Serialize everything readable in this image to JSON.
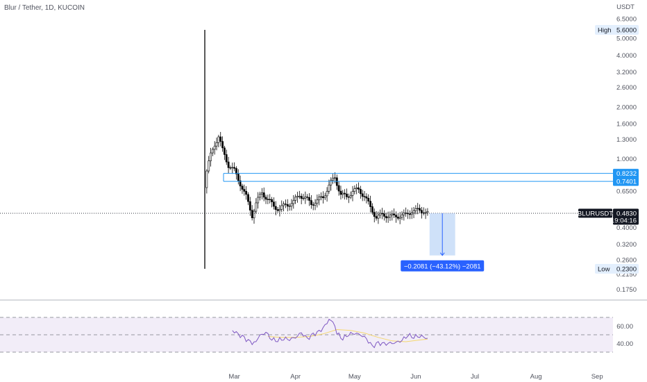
{
  "header": {
    "symbol_title": "Blur / Tether, 1D, KUCOIN",
    "price_axis_currency": "USDT"
  },
  "colors": {
    "candle": "#000000",
    "level_line": "#2196f3",
    "level_tag": "#2196f3",
    "measure_fill": "#bbd4f6",
    "measure_line": "#2962ff",
    "measure_label_bg": "#2962ff",
    "rsi_line": "#7e57c2",
    "rsi_ma": "#f5d76e",
    "rsi_band": "#ede7f6",
    "last_tag_bg": "#131722",
    "stat_bg": "#e3effd"
  },
  "labels": {
    "high_label": "High",
    "high_value": "5.6000",
    "low_label": "Low",
    "low_value": "0.2300",
    "level_upper": "0.8232",
    "level_lower": "0.7401",
    "last_symbol": "BLURUSDT",
    "last_price": "0.4830",
    "countdown": "19:04:16",
    "measure_text": "−0.2081 (−43.12%) −2081"
  },
  "chart_data": [
    {
      "type": "candlestick",
      "title": "Blur / Tether, 1D, KUCOIN",
      "y_scale": "log",
      "y_ticks": [
        "6.5000",
        "5.6000",
        "5.0000",
        "4.0000",
        "3.2000",
        "2.6000",
        "2.0000",
        "1.6000",
        "1.3000",
        "1.0000",
        "0.8232",
        "0.7401",
        "0.6500",
        "0.4830",
        "0.4000",
        "0.3200",
        "0.2600",
        "0.2300",
        "0.2150",
        "0.1750"
      ],
      "x_ticks": [
        "Mar",
        "Apr",
        "May",
        "Jun",
        "Jul",
        "Aug",
        "Sep"
      ],
      "ylim": [
        0.16,
        6.8
      ],
      "first_candle": {
        "date": "2023-02-14",
        "open": 0.68,
        "high": 5.6,
        "low": 0.23,
        "close": 0.68
      },
      "close_anchors": [
        [
          "2023-02-15",
          0.85
        ],
        [
          "2023-02-17",
          1.05
        ],
        [
          "2023-02-19",
          1.22
        ],
        [
          "2023-02-21",
          1.35
        ],
        [
          "2023-02-23",
          1.12
        ],
        [
          "2023-02-26",
          0.92
        ],
        [
          "2023-03-01",
          0.85
        ],
        [
          "2023-03-04",
          0.72
        ],
        [
          "2023-03-07",
          0.6
        ],
        [
          "2023-03-10",
          0.47
        ],
        [
          "2023-03-12",
          0.55
        ],
        [
          "2023-03-15",
          0.64
        ],
        [
          "2023-03-18",
          0.58
        ],
        [
          "2023-03-21",
          0.53
        ],
        [
          "2023-03-24",
          0.51
        ],
        [
          "2023-03-27",
          0.54
        ],
        [
          "2023-03-31",
          0.56
        ],
        [
          "2023-04-03",
          0.62
        ],
        [
          "2023-04-06",
          0.59
        ],
        [
          "2023-04-09",
          0.55
        ],
        [
          "2023-04-12",
          0.57
        ],
        [
          "2023-04-15",
          0.6
        ],
        [
          "2023-04-18",
          0.7
        ],
        [
          "2023-04-21",
          0.78
        ],
        [
          "2023-04-24",
          0.62
        ],
        [
          "2023-04-27",
          0.6
        ],
        [
          "2023-04-30",
          0.65
        ],
        [
          "2023-05-03",
          0.66
        ],
        [
          "2023-05-06",
          0.61
        ],
        [
          "2023-05-09",
          0.52
        ],
        [
          "2023-05-12",
          0.46
        ],
        [
          "2023-05-15",
          0.47
        ],
        [
          "2023-05-18",
          0.47
        ],
        [
          "2023-05-21",
          0.46
        ],
        [
          "2023-05-24",
          0.47
        ],
        [
          "2023-05-27",
          0.47
        ],
        [
          "2023-05-30",
          0.5
        ],
        [
          "2023-06-02",
          0.5
        ],
        [
          "2023-06-05",
          0.5
        ],
        [
          "2023-06-07",
          0.483
        ]
      ],
      "levels": [
        0.8232,
        0.7401
      ],
      "last_price": 0.483,
      "measure": {
        "from_date": "2023-06-08",
        "to_date": "2023-06-21",
        "from_price": 0.483,
        "to_price": 0.2749,
        "change": -0.2081,
        "percent": -43.12,
        "bars": -2081
      }
    },
    {
      "type": "line",
      "title": "RSI",
      "y_ticks": [
        "60.00",
        "40.00"
      ],
      "ylim": [
        10,
        90
      ],
      "bands": [
        30,
        50,
        70
      ],
      "series": [
        {
          "values": [
            [
              "2023-02-28",
              55
            ],
            [
              "2023-03-03",
              50
            ],
            [
              "2023-03-06",
              46
            ],
            [
              "2023-03-09",
              41
            ],
            [
              "2023-03-11",
              40
            ],
            [
              "2023-03-14",
              49
            ],
            [
              "2023-03-17",
              53
            ],
            [
              "2023-03-20",
              45
            ],
            [
              "2023-03-23",
              44
            ],
            [
              "2023-03-26",
              46
            ],
            [
              "2023-03-29",
              45
            ],
            [
              "2023-04-01",
              47
            ],
            [
              "2023-04-04",
              52
            ],
            [
              "2023-04-07",
              45
            ],
            [
              "2023-04-10",
              50
            ],
            [
              "2023-04-13",
              53
            ],
            [
              "2023-04-16",
              60
            ],
            [
              "2023-04-18",
              67
            ],
            [
              "2023-04-20",
              65
            ],
            [
              "2023-04-22",
              52
            ],
            [
              "2023-04-25",
              46
            ],
            [
              "2023-04-28",
              51
            ],
            [
              "2023-05-01",
              52
            ],
            [
              "2023-05-04",
              50
            ],
            [
              "2023-05-07",
              45
            ],
            [
              "2023-05-10",
              36
            ],
            [
              "2023-05-13",
              40
            ],
            [
              "2023-05-16",
              39
            ],
            [
              "2023-05-19",
              40
            ],
            [
              "2023-05-22",
              41
            ],
            [
              "2023-05-25",
              44
            ],
            [
              "2023-05-28",
              50
            ],
            [
              "2023-05-31",
              48
            ],
            [
              "2023-06-03",
              49
            ],
            [
              "2023-06-06",
              47
            ],
            [
              "2023-06-07",
              46
            ]
          ]
        },
        {
          "values": [
            [
              "2023-03-18",
              48
            ],
            [
              "2023-03-25",
              47
            ],
            [
              "2023-04-01",
              47
            ],
            [
              "2023-04-08",
              48
            ],
            [
              "2023-04-15",
              51
            ],
            [
              "2023-04-22",
              56
            ],
            [
              "2023-04-29",
              55
            ],
            [
              "2023-05-06",
              52
            ],
            [
              "2023-05-13",
              47
            ],
            [
              "2023-05-20",
              43
            ],
            [
              "2023-05-27",
              42
            ],
            [
              "2023-06-03",
              44
            ],
            [
              "2023-06-07",
              45
            ]
          ]
        }
      ]
    }
  ]
}
